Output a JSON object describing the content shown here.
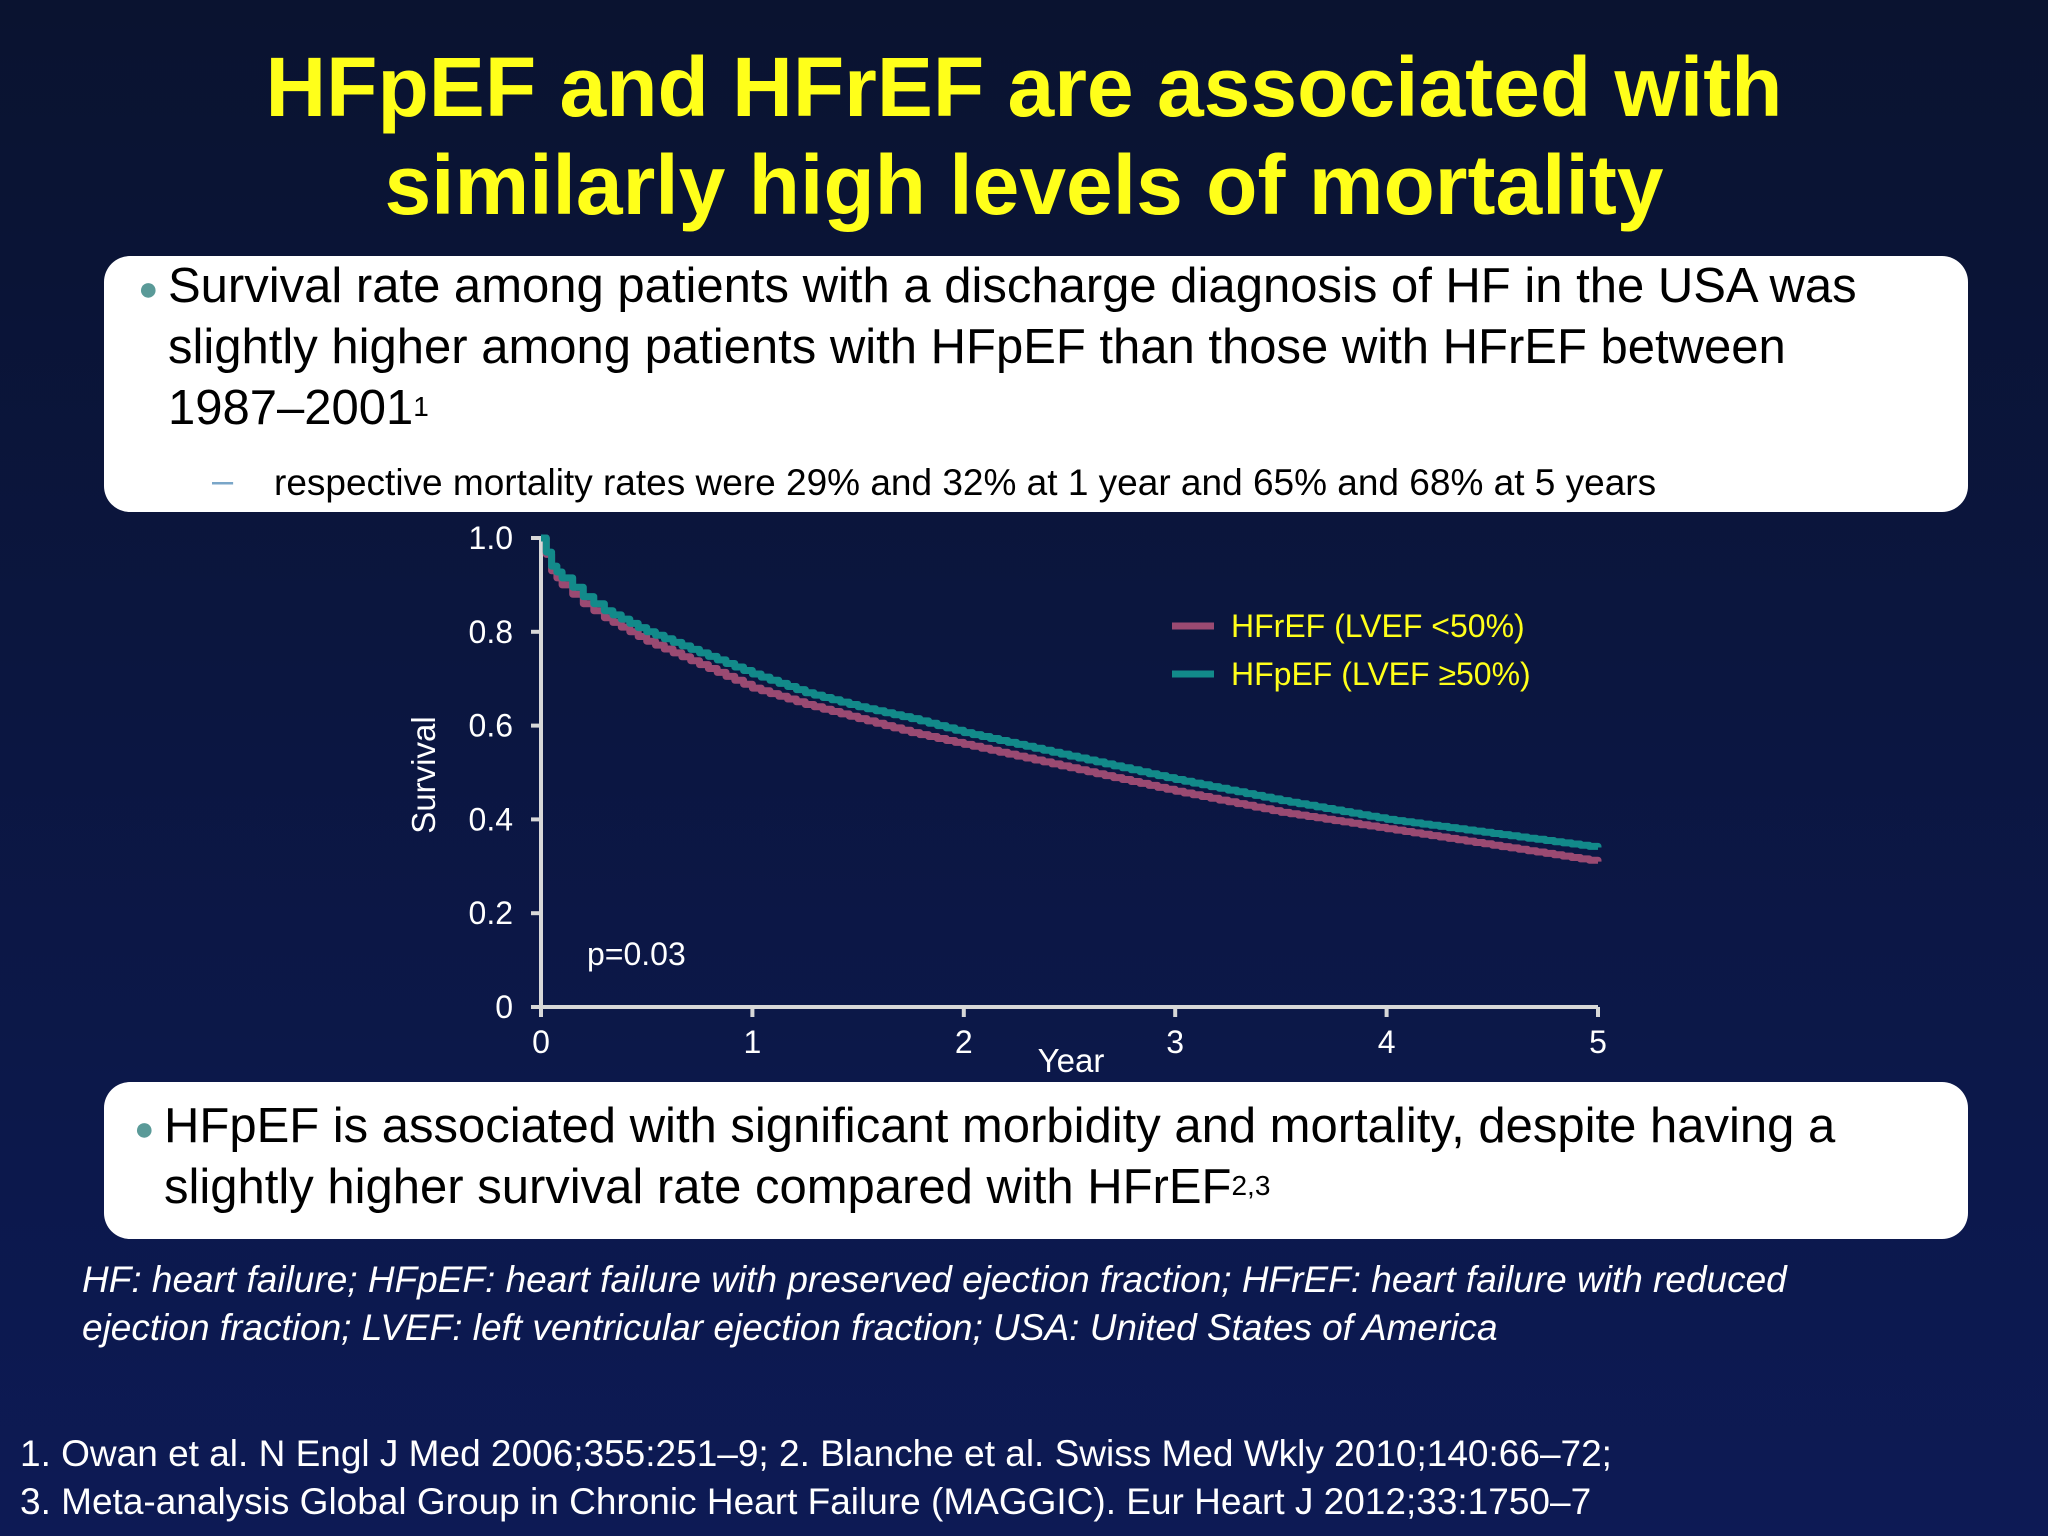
{
  "title": {
    "line1": "HFpEF and HFrEF are associated with",
    "line2": "similarly high levels of mortality"
  },
  "box1": {
    "line1": "Survival rate among patients with a discharge diagnosis of HF in the USA was",
    "line2": "slightly higher among patients with HFpEF than those with HFrEF between",
    "line3": "1987–2001",
    "line3_sup": "1",
    "sub": "respective mortality rates were 29% and 32% at 1 year and 65% and 68% at 5 years"
  },
  "box2": {
    "line1": "HFpEF is associated with significant morbidity and mortality, despite having a",
    "line2": "slightly higher survival rate compared with HFrEF",
    "line2_sup": "2,3"
  },
  "abbreviations": {
    "line1": "HF: heart failure; HFpEF: heart failure with preserved ejection fraction; HFrEF: heart failure with reduced",
    "line2": "ejection fraction; LVEF: left ventricular ejection fraction; USA: United States of America"
  },
  "references": {
    "line1": "1. Owan et al. N Engl J Med 2006;355:251–9; 2. Blanche et al. Swiss Med Wkly 2010;140:66–72;",
    "line2": "3. Meta-analysis Global Group in Chronic Heart Failure (MAGGIC). Eur Heart J 2012;33:1750–7"
  },
  "colors": {
    "hfref": "#9a4a72",
    "hfpef": "#128a8a",
    "title": "#ffff1a",
    "axis": "#d8d8d8"
  },
  "chart_data": {
    "type": "line",
    "xlabel": "Year",
    "ylabel": "Survival",
    "xlim": [
      0,
      5
    ],
    "ylim": [
      0,
      1.0
    ],
    "x_ticks": [
      "0",
      "1",
      "2",
      "3",
      "4",
      "5"
    ],
    "y_ticks": [
      "0",
      "0.2",
      "0.4",
      "0.6",
      "0.8",
      "1.0"
    ],
    "annotation": "p=0.03",
    "legend_position": "top-right",
    "series": [
      {
        "name": "HFrEF (LVEF <50%)",
        "x": [
          0,
          0.05,
          0.1,
          0.2,
          0.3,
          0.5,
          0.75,
          1.0,
          1.25,
          1.5,
          1.75,
          2.0,
          2.5,
          3.0,
          3.5,
          4.0,
          4.5,
          5.0
        ],
        "y": [
          1.0,
          0.93,
          0.9,
          0.86,
          0.83,
          0.78,
          0.73,
          0.68,
          0.645,
          0.615,
          0.585,
          0.56,
          0.51,
          0.46,
          0.415,
          0.38,
          0.345,
          0.31
        ]
      },
      {
        "name": "HFpEF (LVEF ≥50%)",
        "x": [
          0,
          0.05,
          0.1,
          0.2,
          0.3,
          0.5,
          0.75,
          1.0,
          1.25,
          1.5,
          1.75,
          2.0,
          2.5,
          3.0,
          3.5,
          4.0,
          4.5,
          5.0
        ],
        "y": [
          1.0,
          0.94,
          0.915,
          0.875,
          0.845,
          0.8,
          0.755,
          0.71,
          0.67,
          0.64,
          0.615,
          0.585,
          0.535,
          0.485,
          0.44,
          0.4,
          0.37,
          0.34
        ]
      }
    ]
  }
}
